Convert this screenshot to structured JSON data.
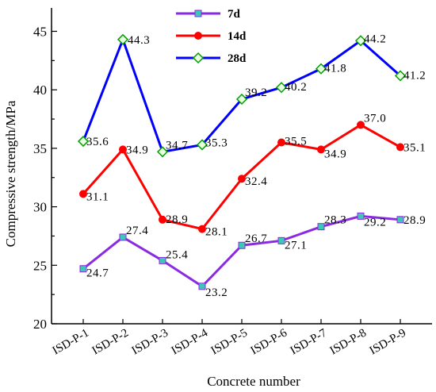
{
  "chart_data": {
    "type": "line",
    "title": "",
    "xlabel": "Concrete number",
    "ylabel": "Compressive strength/MPa",
    "categories": [
      "ISD-P-1",
      "ISD-P-2",
      "ISD-P-3",
      "ISD-P-4",
      "ISD-P-5",
      "ISD-P-6",
      "ISD-P-7",
      "ISD-P-8",
      "ISD-P-9"
    ],
    "ylim": [
      20,
      47
    ],
    "yticks": [
      20,
      25,
      30,
      35,
      40,
      45
    ],
    "legend_position": "top-center",
    "grid": false,
    "series": [
      {
        "name": "7d",
        "color": "#8a2be2",
        "marker": "square",
        "marker_color": "#3cc8b4",
        "values": [
          24.7,
          27.4,
          25.4,
          23.2,
          26.7,
          27.1,
          28.3,
          29.2,
          28.9
        ],
        "labels": [
          "24.7",
          "27.4",
          "25.4",
          "23.2",
          "26.7",
          "27.1",
          "28.3",
          "29.2",
          "28.9"
        ]
      },
      {
        "name": "14d",
        "color": "#ff0000",
        "marker": "circle",
        "marker_color": "#ff0000",
        "values": [
          31.1,
          34.9,
          28.9,
          28.1,
          32.4,
          35.5,
          34.9,
          37.0,
          35.1
        ],
        "labels": [
          "31.1",
          "34.9",
          "28.9",
          "28.1",
          "32.4",
          "35.5",
          "34.9",
          "37.0",
          "35.1"
        ]
      },
      {
        "name": "28d",
        "color": "#0000ff",
        "marker": "diamond",
        "marker_color": "#00a000",
        "values": [
          35.6,
          44.3,
          34.7,
          35.3,
          39.2,
          40.2,
          41.8,
          44.2,
          41.2
        ],
        "labels": [
          "35.6",
          "44.3",
          "34.7",
          "35.3",
          "39.2",
          "40.2",
          "41.8",
          "44.2",
          "41.2"
        ]
      }
    ]
  }
}
